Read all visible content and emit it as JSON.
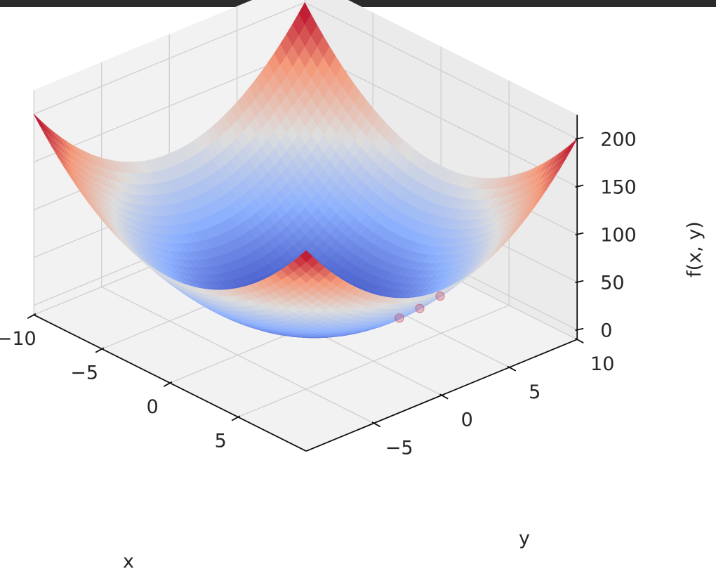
{
  "chart_data": {
    "type": "surface3d",
    "function": "f(x, y) = x^2 + y^2",
    "colormap": "coolwarm",
    "xlabel": "x",
    "ylabel": "y",
    "zlabel": "f(x, y)",
    "x_range": [
      -10,
      10
    ],
    "y_range": [
      -10,
      10
    ],
    "z_range": [
      0,
      200
    ],
    "x_ticks": [
      -10,
      -5,
      0,
      5
    ],
    "y_ticks": [
      -5,
      0,
      5,
      10
    ],
    "z_ticks": [
      0,
      50,
      100,
      150,
      200
    ],
    "x_tick_labels": [
      "−10",
      "−5",
      "0",
      "5"
    ],
    "y_tick_labels": [
      "−5",
      "0",
      "5",
      "10"
    ],
    "z_tick_labels": [
      "0",
      "50",
      "100",
      "150",
      "200"
    ],
    "grid": true,
    "markers": [
      {
        "x": 7.5,
        "y": 2.4,
        "z": 62
      },
      {
        "x": 6.9,
        "y": 1.5,
        "z": 50
      },
      {
        "x": 6.0,
        "y": 0.9,
        "z": 37
      }
    ]
  }
}
